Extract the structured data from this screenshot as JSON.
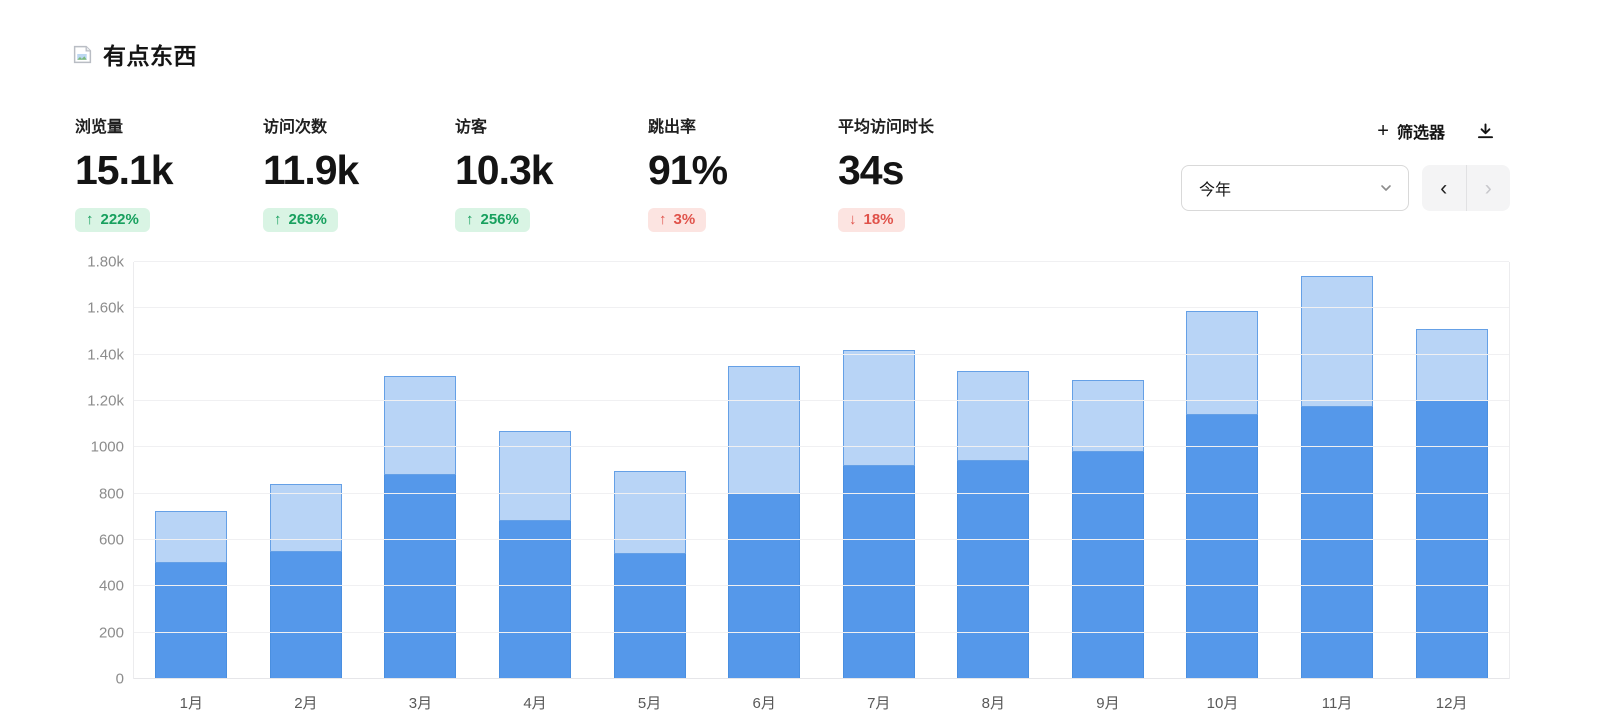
{
  "page": {
    "title": "有点东西"
  },
  "stats": [
    {
      "label": "浏览量",
      "value": "15.1k",
      "change": {
        "arrow": "↑",
        "text": "222%",
        "type": "positive"
      }
    },
    {
      "label": "访问次数",
      "value": "11.9k",
      "change": {
        "arrow": "↑",
        "text": "263%",
        "type": "positive"
      }
    },
    {
      "label": "访客",
      "value": "10.3k",
      "change": {
        "arrow": "↑",
        "text": "256%",
        "type": "positive"
      }
    },
    {
      "label": "跳出率",
      "value": "91%",
      "change": {
        "arrow": "↑",
        "text": "3%",
        "type": "negative"
      }
    },
    {
      "label": "平均访问时长",
      "value": "34s",
      "change": {
        "arrow": "↓",
        "text": "18%",
        "type": "negative"
      }
    }
  ],
  "controls": {
    "filter_label": "筛选器",
    "filter_plus": "+",
    "period_value": "今年",
    "pager_prev": "‹",
    "pager_next": "›"
  },
  "colors": {
    "bar_lower": "#5598ea",
    "bar_lower_border": "#4a8fe0",
    "bar_upper": "#a9cbf4",
    "bar_upper_border": "#7fb0eb",
    "badge_positive_bg": "#d9f4e4",
    "badge_positive_text": "#17a05e",
    "badge_negative_bg": "#fce4e1",
    "badge_negative_text": "#e0524a",
    "gridline": "#f0f0f2",
    "axis_text": "#8c8c8c"
  },
  "chart_data": {
    "type": "bar",
    "stacked": true,
    "title": "",
    "xlabel": "",
    "ylabel": "",
    "categories": [
      "1月",
      "2月",
      "3月",
      "4月",
      "5月",
      "6月",
      "7月",
      "8月",
      "9月",
      "10月",
      "11月",
      "12月"
    ],
    "series": [
      {
        "name": "lower",
        "color": "#5598ea",
        "values": [
          500,
          550,
          880,
          680,
          540,
          800,
          920,
          940,
          980,
          1140,
          1175,
          1200
        ]
      },
      {
        "name": "upper",
        "color": "#a9cbf4",
        "values": [
          225,
          290,
          430,
          390,
          360,
          550,
          500,
          390,
          310,
          450,
          565,
          310
        ]
      }
    ],
    "totals": [
      725,
      840,
      1310,
      1070,
      900,
      1350,
      1420,
      1330,
      1290,
      1590,
      1740,
      1510
    ],
    "ylim": [
      0,
      1800
    ],
    "ytick_values": [
      0,
      200,
      400,
      600,
      800,
      1000,
      1200,
      1400,
      1600,
      1800
    ],
    "ytick_labels": [
      "0",
      "200",
      "400",
      "600",
      "800",
      "1000",
      "1.20k",
      "1.40k",
      "1.60k",
      "1.80k"
    ],
    "grid": true,
    "legend_position": "none"
  }
}
